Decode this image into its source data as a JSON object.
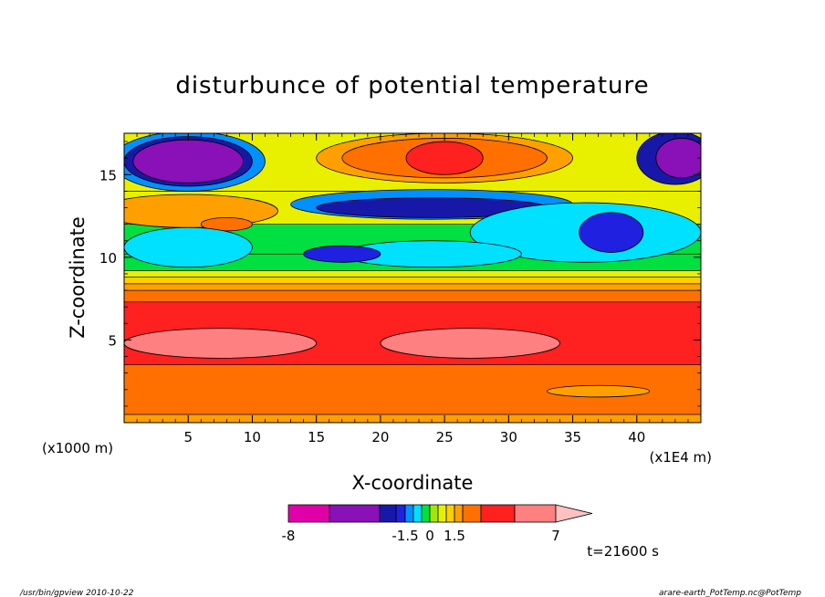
{
  "chart_data": {
    "type": "heatmap",
    "title": "disturbunce of potential temperature",
    "xlabel": "X-coordinate",
    "ylabel": "Z-coordinate",
    "x_unit_label": "(x1E4 m)",
    "y_unit_label": "(x1000 m)",
    "xlim": [
      0,
      45
    ],
    "ylim": [
      0,
      17.5
    ],
    "x_ticks": [
      5,
      10,
      15,
      20,
      25,
      30,
      35,
      40
    ],
    "y_ticks": [
      5,
      10,
      15
    ],
    "colorbar": {
      "levels": [
        -8,
        -6,
        -4,
        -2,
        -1.5,
        -1,
        -0.5,
        0,
        0.5,
        1,
        1.5,
        2,
        3,
        5,
        7
      ],
      "colors": [
        "#e000a8",
        "#8a10b8",
        "#1818a8",
        "#2020e0",
        "#0090ff",
        "#00e0ff",
        "#00e040",
        "#a0e800",
        "#e8f000",
        "#ffd000",
        "#ffa000",
        "#ff7000",
        "#ff2020",
        "#ff8080",
        "#ffc0c0"
      ],
      "tick_labels": [
        {
          "value": -8,
          "text": "-8"
        },
        {
          "value": -1.5,
          "text": "-1.5"
        },
        {
          "value": 0,
          "text": "0"
        },
        {
          "value": 1.5,
          "text": "1.5"
        },
        {
          "value": 7,
          "text": "7"
        }
      ]
    },
    "time_label": "t=21600 s",
    "footer_left": "/usr/bin/gpview   2010-10-22",
    "footer_right": "arare-earth_PotTemp.nc@PotTemp",
    "bands": [
      {
        "z0": 0,
        "z1": 0.5,
        "color": "#ffa000"
      },
      {
        "z0": 0.5,
        "z1": 3.5,
        "color": "#ff7000"
      },
      {
        "z0": 3.5,
        "z1": 7.3,
        "color": "#ff2020"
      },
      {
        "z0": 7.3,
        "z1": 8.0,
        "color": "#ff7000"
      },
      {
        "z0": 8.0,
        "z1": 8.4,
        "color": "#ffa000"
      },
      {
        "z0": 8.4,
        "z1": 8.8,
        "color": "#ffd000"
      },
      {
        "z0": 8.8,
        "z1": 9.2,
        "color": "#e8f000"
      },
      {
        "z0": 9.2,
        "z1": 10.2,
        "color": "#00e040"
      },
      {
        "z0": 10.2,
        "z1": 12.0,
        "color": "#00e040"
      },
      {
        "z0": 12.0,
        "z1": 14.0,
        "color": "#e8f000"
      },
      {
        "z0": 14.0,
        "z1": 17.5,
        "color": "#e8f000"
      }
    ],
    "blobs": [
      {
        "cx": 7.5,
        "cz": 4.8,
        "rx": 7.5,
        "rz": 0.9,
        "color": "#ff8080"
      },
      {
        "cx": 27,
        "cz": 4.8,
        "rx": 7,
        "rz": 0.9,
        "color": "#ff8080"
      },
      {
        "cx": 5,
        "cz": 15.8,
        "rx": 6,
        "rz": 1.8,
        "color": "#0090ff"
      },
      {
        "cx": 5,
        "cz": 15.8,
        "rx": 5,
        "rz": 1.5,
        "color": "#1818a8"
      },
      {
        "cx": 5,
        "cz": 15.8,
        "rx": 4.3,
        "rz": 1.3,
        "color": "#8a10b8"
      },
      {
        "cx": 43,
        "cz": 16,
        "rx": 3,
        "rz": 1.6,
        "color": "#1818a8"
      },
      {
        "cx": 43.5,
        "cz": 16,
        "rx": 2,
        "rz": 1.2,
        "color": "#8a10b8"
      },
      {
        "cx": 25,
        "cz": 16,
        "rx": 10,
        "rz": 1.5,
        "color": "#ffa000"
      },
      {
        "cx": 25,
        "cz": 16,
        "rx": 8,
        "rz": 1.2,
        "color": "#ff7000"
      },
      {
        "cx": 25,
        "cz": 16,
        "rx": 3,
        "rz": 1.0,
        "color": "#ff2020"
      },
      {
        "cx": 5,
        "cz": 12.8,
        "rx": 7,
        "rz": 1.0,
        "color": "#ffa000"
      },
      {
        "cx": 8,
        "cz": 12.0,
        "rx": 2,
        "rz": 0.4,
        "color": "#ff7000"
      },
      {
        "cx": 24,
        "cz": 13.2,
        "rx": 11,
        "rz": 0.9,
        "color": "#0090ff"
      },
      {
        "cx": 24,
        "cz": 13.0,
        "rx": 9,
        "rz": 0.6,
        "color": "#1818a8"
      },
      {
        "cx": 36,
        "cz": 11.5,
        "rx": 9,
        "rz": 1.8,
        "color": "#00e0ff"
      },
      {
        "cx": 38,
        "cz": 11.5,
        "rx": 2.5,
        "rz": 1.2,
        "color": "#2020e0"
      },
      {
        "cx": 5,
        "cz": 10.6,
        "rx": 5,
        "rz": 1.2,
        "color": "#00e0ff"
      },
      {
        "cx": 24,
        "cz": 10.2,
        "rx": 7,
        "rz": 0.8,
        "color": "#00e0ff"
      },
      {
        "cx": 17,
        "cz": 10.2,
        "rx": 3,
        "rz": 0.5,
        "color": "#2020e0"
      },
      {
        "cx": 37,
        "cz": 1.9,
        "rx": 4,
        "rz": 0.35,
        "color": "#ffa000"
      }
    ]
  }
}
